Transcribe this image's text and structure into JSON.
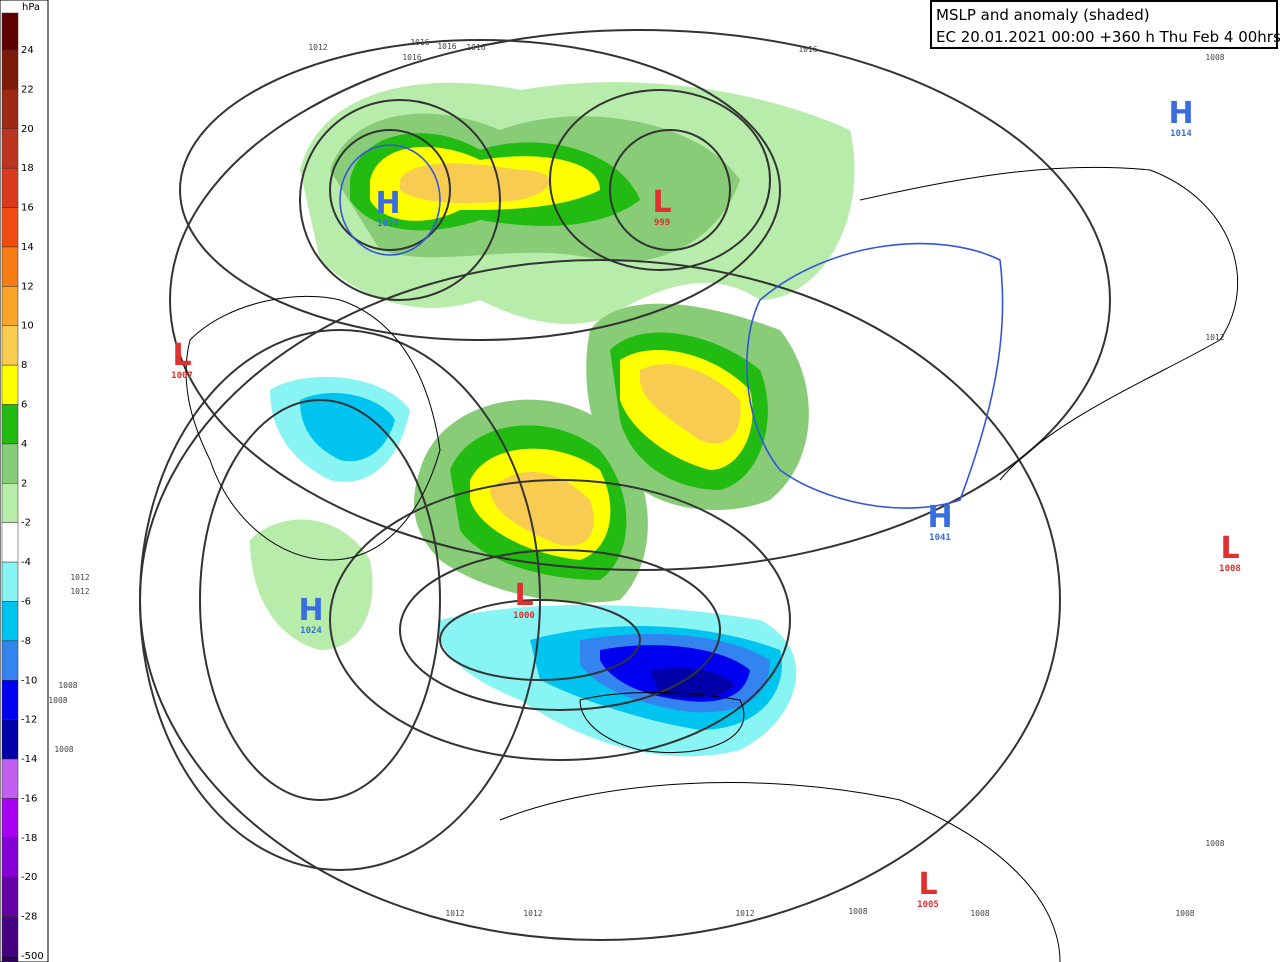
{
  "header": {
    "title": "MSLP and anomaly (shaded)",
    "subtitle": "EC 20.01.2021 00:00 +360 h Thu Feb 4 00hrs"
  },
  "legend": {
    "unit": "hPa",
    "labels": [
      "24",
      "22",
      "20",
      "18",
      "16",
      "14",
      "12",
      "10",
      "8",
      "6",
      "4",
      "2",
      "-2",
      "-4",
      "-6",
      "-8",
      "-10",
      "-12",
      "-14",
      "-16",
      "-18",
      "-20",
      "-28",
      "-500"
    ],
    "colors": [
      "#5c0000",
      "#7c1a0c",
      "#9c2a16",
      "#bb3420",
      "#d83c1c",
      "#f24c10",
      "#f87c14",
      "#f8a428",
      "#f8cc50",
      "#ffff00",
      "#22bb11",
      "#88cc77",
      "#b8ecaa",
      "#ffffff",
      "#88f4f4",
      "#00c4f0",
      "#3484f0",
      "#0000f0",
      "#0000a8",
      "#c060f0",
      "#a800f0",
      "#8400d4",
      "#6400a4",
      "#460082",
      "#2c005a"
    ]
  },
  "centers": [
    {
      "symbol": "H",
      "value": "1027"
    },
    {
      "symbol": "L",
      "value": "999"
    },
    {
      "symbol": "L",
      "value": "1007"
    },
    {
      "symbol": "H",
      "value": "1024"
    },
    {
      "symbol": "L",
      "value": "1000"
    },
    {
      "symbol": "H",
      "value": "1041"
    },
    {
      "symbol": "L",
      "value": "1008"
    },
    {
      "symbol": "L",
      "value": "1005"
    },
    {
      "symbol": "H",
      "value": "1014"
    }
  ],
  "isobar_labels": [
    "1012",
    "1016",
    "1016",
    "1016",
    "1016",
    "1016",
    "1008",
    "1012",
    "1012",
    "1012",
    "1008",
    "1008",
    "1008",
    "1012",
    "1012",
    "1012",
    "1008",
    "1008",
    "1008",
    "1008"
  ]
}
